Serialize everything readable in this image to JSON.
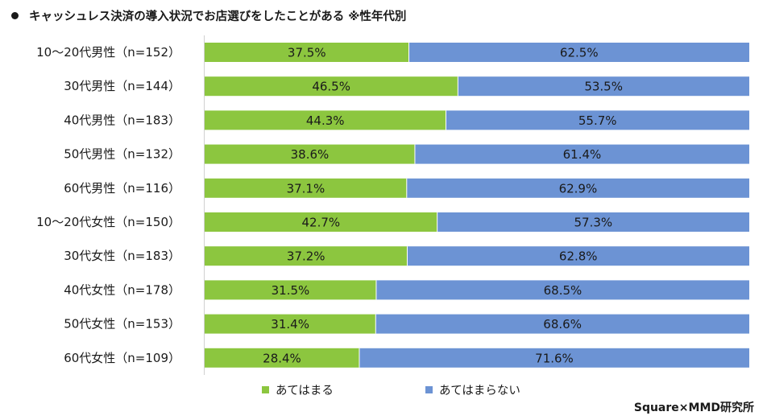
{
  "header": {
    "title": "キャッシュレス決済の導入状況でお店選びをしたことがある ※性年代別"
  },
  "credit": "Square×MMD研究所",
  "chart_data": {
    "type": "bar",
    "orientation": "horizontal",
    "stacked": true,
    "percent_stacked": true,
    "xlim": [
      0,
      100
    ],
    "grid": false,
    "legend_position": "bottom",
    "categories": [
      "10～20代男性（n=152）",
      "30代男性（n=144）",
      "40代男性（n=183）",
      "50代男性（n=132）",
      "60代男性（n=116）",
      "10～20代女性（n=150）",
      "30代女性（n=183）",
      "40代女性（n=178）",
      "50代女性（n=153）",
      "60代女性（n=109）"
    ],
    "series": [
      {
        "name": "あてはまる",
        "color": "#8CC63F",
        "values": [
          37.5,
          46.5,
          44.3,
          38.6,
          37.1,
          42.7,
          37.2,
          31.5,
          31.4,
          28.4
        ]
      },
      {
        "name": "あてはまらない",
        "color": "#6C93D4",
        "values": [
          62.5,
          53.5,
          55.7,
          61.4,
          62.9,
          57.3,
          62.8,
          68.5,
          68.6,
          71.6
        ]
      }
    ]
  }
}
